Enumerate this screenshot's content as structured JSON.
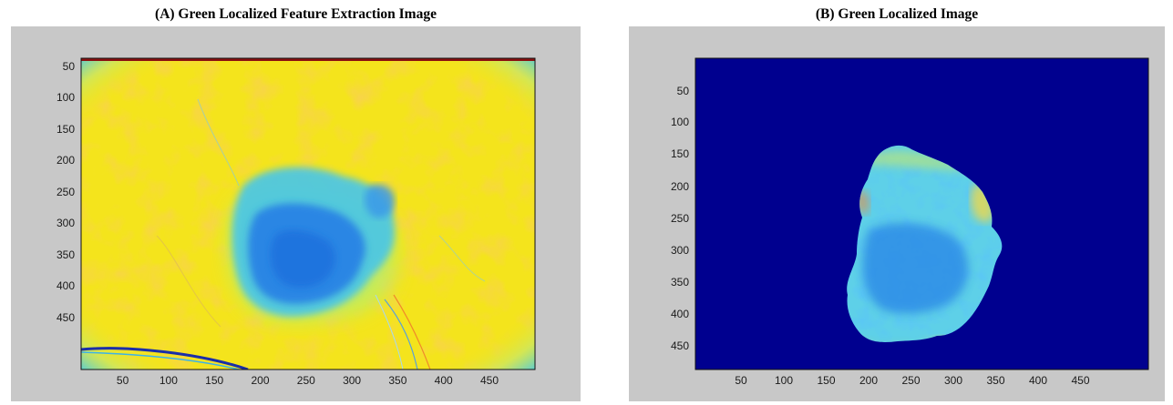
{
  "panels": [
    {
      "caption": "(A) Green Localized Feature Extraction Image",
      "x_ticks": [
        "50",
        "100",
        "150",
        "200",
        "250",
        "300",
        "350",
        "400",
        "450"
      ],
      "y_ticks": [
        "50",
        "100",
        "150",
        "200",
        "250",
        "300",
        "350",
        "400",
        "450"
      ],
      "colormap": "jet",
      "background_color": "#f2e81e",
      "lesion_color": "#2f88e6"
    },
    {
      "caption": "(B) Green Localized Image",
      "x_ticks": [
        "50",
        "100",
        "150",
        "200",
        "250",
        "300",
        "350",
        "400",
        "450"
      ],
      "y_ticks": [
        "50",
        "100",
        "150",
        "200",
        "250",
        "300",
        "350",
        "400",
        "450"
      ],
      "colormap": "jet",
      "background_color": "#00008f",
      "lesion_color": "#2f9fe8"
    }
  ],
  "figure_background": "#c8c8c8"
}
